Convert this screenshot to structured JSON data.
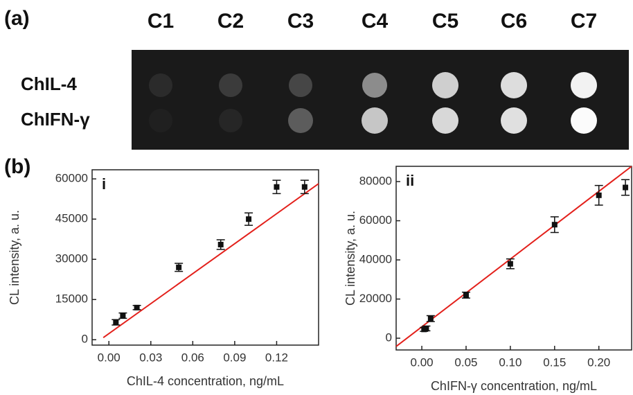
{
  "figure": {
    "label_a": "(a)",
    "label_b": "(b)",
    "columns": [
      "C1",
      "C2",
      "C3",
      "C4",
      "C5",
      "C6",
      "C7"
    ],
    "rows": [
      "ChIL-4",
      "ChIFN-γ"
    ]
  },
  "chart_data": [
    {
      "type": "scatter",
      "panel": "i",
      "xlabel": "ChIL-4 concentration, ng/mL",
      "ylabel": "CL intensity, a. u.",
      "x": [
        0.005,
        0.01,
        0.02,
        0.05,
        0.08,
        0.1,
        0.12,
        0.14
      ],
      "values": [
        6500,
        9000,
        12000,
        27000,
        35500,
        45000,
        57000,
        57000
      ],
      "errors": [
        1000,
        1000,
        800,
        1500,
        1800,
        2300,
        2500,
        2500
      ],
      "color": "#111111",
      "fit": {
        "color": "#e3201b",
        "x": [
          -0.004,
          0.15
        ],
        "y": [
          800,
          58200
        ]
      },
      "xlim": [
        -0.012,
        0.15
      ],
      "ylim": [
        -2000,
        63400
      ],
      "xticks": [
        {
          "value": 0,
          "label": "0.00"
        },
        0.03,
        0.06,
        0.09,
        0.12
      ],
      "yticks": [
        0,
        15000,
        30000,
        45000,
        60000
      ]
    },
    {
      "type": "scatter",
      "panel": "ii",
      "xlabel": "ChIFN-γ  concentration, ng/mL",
      "ylabel": "CL intensity, a. u.",
      "x": [
        0.0025,
        0.005,
        0.01,
        0.05,
        0.1,
        0.15,
        0.2,
        0.23
      ],
      "values": [
        4500,
        5000,
        10000,
        22000,
        38000,
        58000,
        73000,
        77000
      ],
      "errors": [
        1000,
        1200,
        1500,
        1500,
        2500,
        4000,
        5000,
        4000
      ],
      "color": "#111111",
      "fit": {
        "color": "#e3201b",
        "x": [
          -0.029,
          0.237
        ],
        "y": [
          -4200,
          87800
        ]
      },
      "xlim": [
        -0.029,
        0.237
      ],
      "ylim": [
        -6000,
        87800
      ],
      "xticks": [
        {
          "value": 0,
          "label": "0.00"
        },
        0.05,
        {
          "value": 0.1,
          "label": "0.10"
        },
        0.15,
        {
          "value": 0.2,
          "label": "0.20"
        }
      ],
      "yticks": [
        0,
        20000,
        40000,
        60000,
        80000
      ]
    }
  ]
}
